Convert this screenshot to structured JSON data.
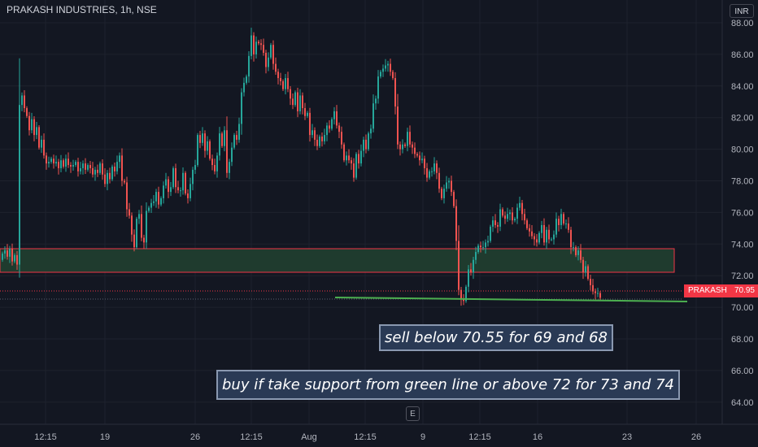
{
  "header": {
    "legend": "PRAKASH INDUSTRIES, 1h, NSE",
    "currency": "INR"
  },
  "price_label": {
    "symbol": "PRAKASH",
    "value": "70.95"
  },
  "annotations": {
    "sell_note": "sell below 70.55 for 69 and 68",
    "buy_note": "buy if take support from green line or above 72 for 73 and 74"
  },
  "footer": {
    "events_button": "E"
  },
  "colors": {
    "background": "#131722",
    "up": "#26a69a",
    "down": "#ef5350",
    "zone_fill": "#1f3b2e",
    "zone_border": "#f23645",
    "trendline": "#4caf50",
    "note_bg": "#2a3a55"
  },
  "chart_data": {
    "type": "candlestick",
    "y_axis": {
      "ticks": [
        "88.00",
        "86.00",
        "84.00",
        "82.00",
        "80.00",
        "78.00",
        "76.00",
        "74.00",
        "72.00",
        "70.00",
        "68.00",
        "66.00",
        "64.00"
      ],
      "tick_values": [
        88,
        86,
        84,
        82,
        80,
        78,
        76,
        74,
        72,
        70,
        68,
        66,
        64
      ],
      "range": [
        63.0,
        88.8
      ]
    },
    "x_axis": {
      "labels": [
        "12:15",
        "19",
        "26",
        "12:15",
        "Aug",
        "12:15",
        "9",
        "12:15",
        "16",
        "23",
        "26"
      ]
    },
    "closes": [
      73.4,
      73.6,
      73.2,
      73.7,
      72.9,
      73.3,
      72.7,
      82.8,
      83.4,
      82.6,
      82.1,
      81.2,
      81.9,
      80.9,
      81.4,
      80.1,
      80.6,
      79.6,
      79.1,
      79.2,
      79.4,
      79.1,
      79.2,
      78.8,
      79.3,
      78.9,
      79.4,
      79.0,
      78.9,
      79.0,
      79.2,
      78.6,
      78.8,
      79.1,
      78.7,
      79.0,
      78.8,
      78.4,
      78.7,
      78.5,
      79.1,
      78.4,
      77.8,
      78.5,
      78.1,
      78.9,
      78.6,
      79.2,
      79.6,
      78.0,
      77.9,
      76.2,
      75.8,
      74.6,
      73.8,
      75.6,
      75.9,
      74.4,
      74.1,
      76.1,
      76.3,
      76.6,
      76.7,
      77.3,
      76.5,
      76.9,
      77.7,
      78.1,
      77.3,
      77.6,
      78.8,
      77.6,
      77.4,
      77.4,
      78.5,
      77.2,
      76.9,
      77.8,
      78.7,
      79.0,
      80.9,
      80.4,
      81.0,
      79.9,
      80.5,
      79.4,
      79.0,
      78.6,
      79.6,
      81.0,
      80.2,
      81.2,
      78.5,
      79.2,
      80.1,
      80.9,
      80.6,
      81.6,
      83.6,
      84.2,
      84.6,
      85.9,
      87.2,
      86.0,
      86.8,
      86.7,
      86.6,
      86.1,
      85.2,
      85.8,
      86.6,
      85.4,
      84.9,
      84.5,
      84.3,
      83.8,
      84.5,
      83.8,
      83.2,
      82.8,
      83.6,
      82.4,
      83.4,
      82.6,
      82.1,
      82.3,
      80.9,
      81.2,
      80.6,
      80.2,
      80.8,
      80.5,
      80.9,
      81.5,
      81.3,
      81.9,
      82.4,
      81.5,
      81.1,
      80.3,
      79.3,
      79.6,
      79.3,
      79.1,
      78.2,
      79.7,
      79.1,
      79.9,
      80.6,
      80.0,
      81.0,
      81.3,
      82.9,
      83.2,
      84.6,
      84.9,
      85.1,
      85.3,
      85.4,
      84.9,
      84.5,
      82.7,
      80.3,
      80.0,
      80.3,
      80.2,
      81.1,
      80.3,
      80.1,
      79.7,
      79.6,
      79.3,
      79.4,
      78.8,
      78.2,
      78.6,
      78.6,
      79.1,
      78.5,
      77.5,
      76.9,
      77.5,
      77.9,
      78.0,
      77.3,
      76.4,
      74.2,
      71.1,
      70.5,
      70.4,
      71.3,
      72.4,
      72.2,
      73.0,
      73.5,
      73.9,
      73.8,
      73.8,
      74.1,
      74.2,
      75.1,
      75.5,
      75.2,
      75.1,
      76.2,
      75.8,
      75.6,
      75.9,
      76.0,
      75.5,
      75.6,
      76.3,
      76.6,
      75.9,
      75.5,
      75.0,
      74.8,
      74.5,
      74.3,
      74.1,
      74.7,
      75.2,
      74.1,
      74.9,
      74.3,
      74.3,
      74.6,
      75.6,
      75.2,
      75.9,
      75.3,
      75.3,
      74.9,
      73.8,
      73.8,
      73.3,
      73.6,
      73.0,
      72.2,
      72.6,
      71.8,
      71.4,
      71.0,
      70.9,
      70.9,
      70.6
    ]
  }
}
